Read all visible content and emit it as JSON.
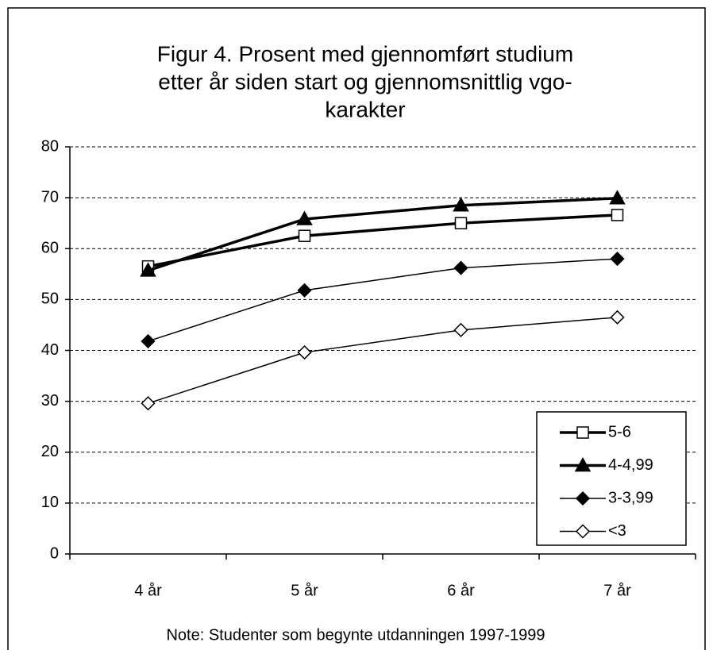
{
  "chart_data": {
    "type": "line",
    "title": [
      "Figur 4. Prosent med gjennomført studium",
      "etter år siden start og gjennomsnittlig vgo-",
      "karakter"
    ],
    "note": "Note: Studenter som begynte utdanningen 1997-1999",
    "categories": [
      "4 år",
      "5 år",
      "6 år",
      "7 år"
    ],
    "series": [
      {
        "name": "5-6",
        "color": "#000000",
        "marker": "square-open",
        "values": [
          56.5,
          62.5,
          65.0,
          66.6
        ]
      },
      {
        "name": "4-4,99",
        "color": "#000000",
        "marker": "triangle",
        "values": [
          55.7,
          65.8,
          68.5,
          69.9
        ]
      },
      {
        "name": "3-3,99",
        "color": "#000000",
        "marker": "diamond",
        "values": [
          41.8,
          51.8,
          56.2,
          58.0
        ]
      },
      {
        "name": "<3",
        "color": "#000000",
        "marker": "diamond-open",
        "values": [
          29.6,
          39.6,
          44.0,
          46.5
        ]
      }
    ],
    "ylim": [
      0,
      80
    ],
    "yticks": [
      0,
      10,
      20,
      30,
      40,
      50,
      60,
      70,
      80
    ],
    "grid": true,
    "legend": "lower right"
  }
}
